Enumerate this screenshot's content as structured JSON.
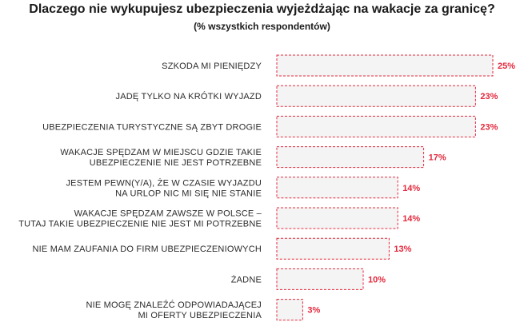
{
  "chart_data": {
    "type": "bar",
    "orientation": "horizontal",
    "title": "Dlaczego nie wykupujesz ubezpieczenia wyjeżdżając na wakacje za granicę?",
    "subtitle": "(% wszystkich respondentów)",
    "categories": [
      [
        "SZKODA MI PIENIĘDZY"
      ],
      [
        "JADĘ TYLKO NA KRÓTKI WYJAZD"
      ],
      [
        "UBEZPIECZENIA TURYSTYCZNE SĄ ZBYT DROGIE"
      ],
      [
        "WAKACJE SPĘDZAM W MIEJSCU GDZIE TAKIE",
        "UBEZPIECZENIE NIE JEST POTRZEBNE"
      ],
      [
        "JESTEM PEWN(Y/A), ŻE W CZASIE WYJAZDU",
        "NA URLOP NIC MI SIĘ NIE STANIE"
      ],
      [
        "WAKACJE SPĘDZAM ZAWSZE W POLSCE –",
        "TUTAJ TAKIE UBEZPIECZENIE NIE JEST MI POTRZEBNE"
      ],
      [
        "NIE MAM ZAUFANIA DO FIRM UBEZPIECZENIOWYCH"
      ],
      [
        "ŻADNE"
      ],
      [
        "NIE MOGĘ ZNALEŹĆ ODPOWIADAJĄCEJ",
        "MI OFERTY UBEZPIECZENIA"
      ]
    ],
    "values": [
      25,
      23,
      23,
      17,
      14,
      14,
      13,
      10,
      3
    ],
    "value_labels": [
      "25%",
      "23%",
      "23%",
      "17%",
      "14%",
      "14%",
      "13%",
      "10%",
      "3%"
    ],
    "unit": "%",
    "xlim": [
      0,
      25
    ],
    "grid": false,
    "legend": "none",
    "colors": {
      "bar_fill": "#f4f4f4",
      "bar_stroke": "#e4283c",
      "value_text": "#e4283c"
    }
  }
}
